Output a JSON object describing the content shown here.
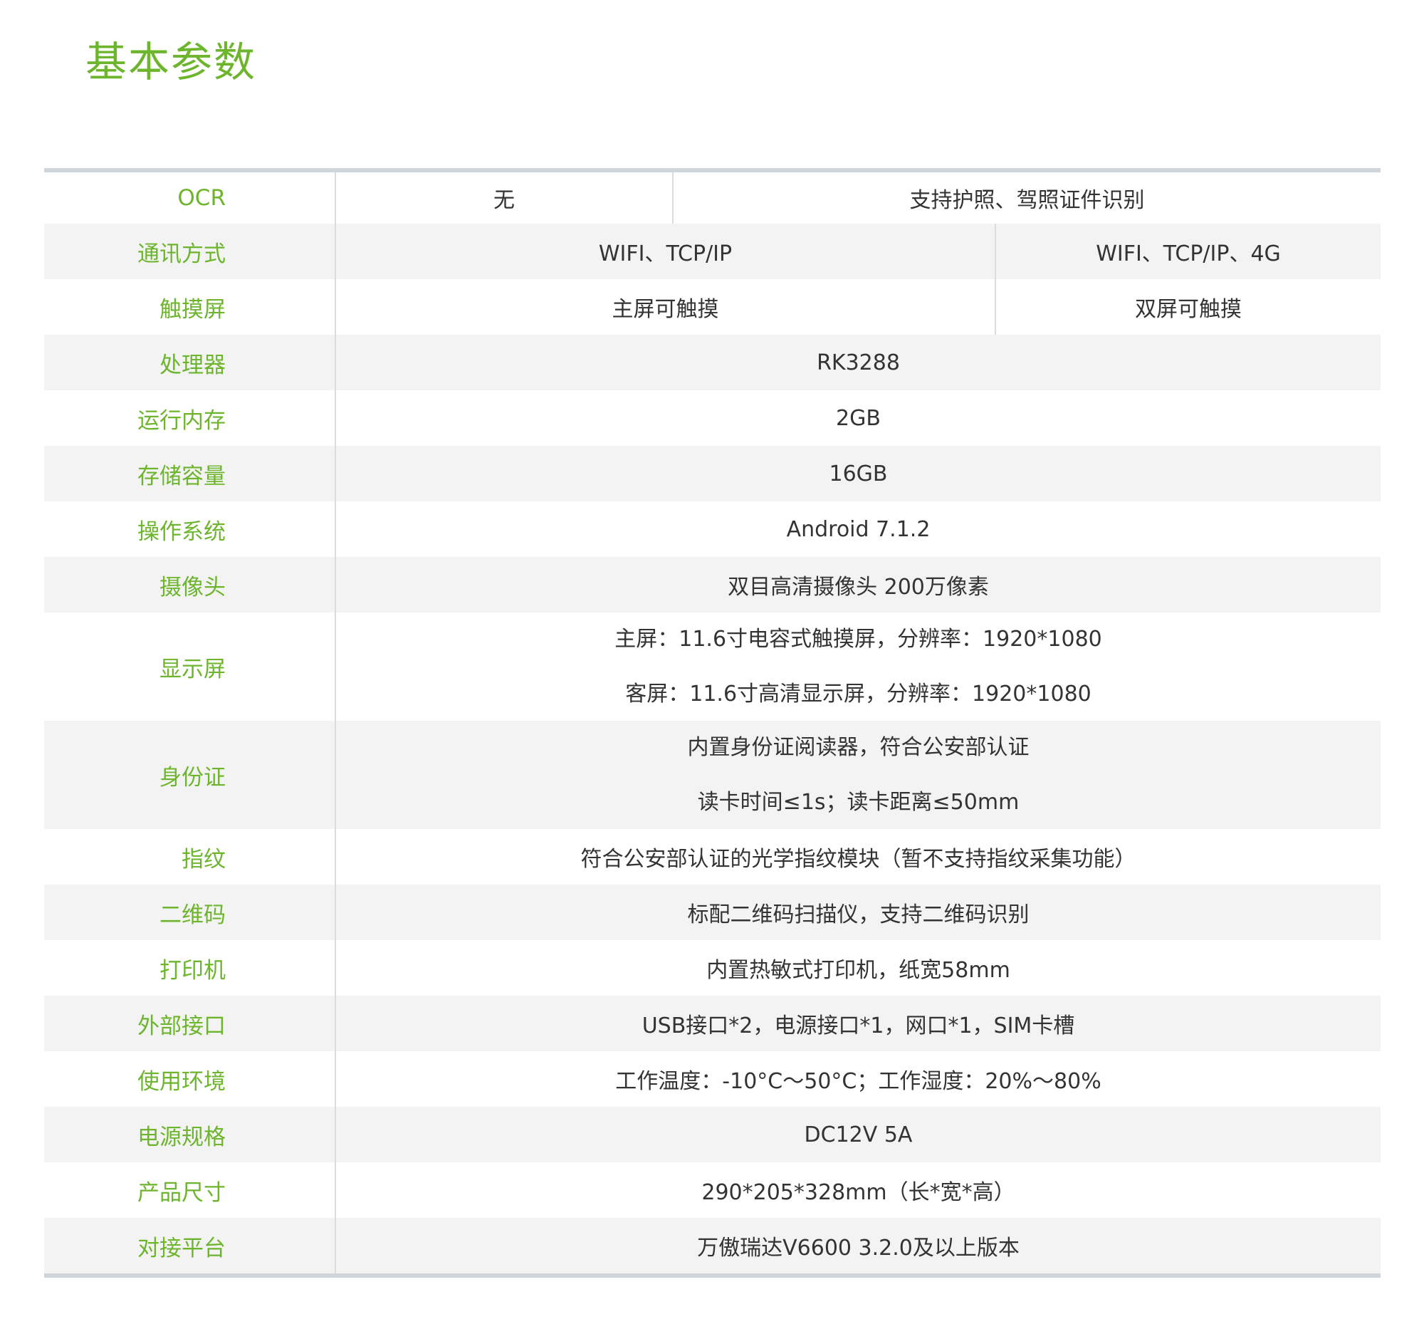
{
  "title": "基本参数",
  "colors": {
    "accent": "#6cb52c",
    "row_alt": "#f3f3f3",
    "border": "#cfd5da"
  },
  "rows": [
    {
      "label": "OCR",
      "values": [
        "无",
        "支持护照、驾照证件识别"
      ]
    },
    {
      "label": "通讯方式",
      "values": [
        "WIFI、TCP/IP",
        "WIFI、TCP/IP、4G"
      ]
    },
    {
      "label": "触摸屏",
      "values": [
        "主屏可触摸",
        "双屏可触摸"
      ]
    },
    {
      "label": "处理器",
      "values": [
        "RK3288"
      ]
    },
    {
      "label": "运行内存",
      "values": [
        "2GB"
      ]
    },
    {
      "label": "存储容量",
      "values": [
        "16GB"
      ]
    },
    {
      "label": "操作系统",
      "values": [
        "Android 7.1.2"
      ]
    },
    {
      "label": "摄像头",
      "values": [
        "双目高清摄像头 200万像素"
      ]
    },
    {
      "label": "显示屏",
      "values": [
        "主屏：11.6寸电容式触摸屏，分辨率：1920*1080",
        "客屏：11.6寸高清显示屏，分辨率：1920*1080"
      ]
    },
    {
      "label": "身份证",
      "values": [
        "内置身份证阅读器，符合公安部认证",
        "读卡时间≤1s；读卡距离≤50mm"
      ]
    },
    {
      "label": "指纹",
      "values": [
        "符合公安部认证的光学指纹模块（暂不支持指纹采集功能）"
      ]
    },
    {
      "label": "二维码",
      "values": [
        "标配二维码扫描仪，支持二维码识别"
      ]
    },
    {
      "label": "打印机",
      "values": [
        "内置热敏式打印机，纸宽58mm"
      ]
    },
    {
      "label": "外部接口",
      "values": [
        "USB接口*2，电源接口*1，网口*1，SIM卡槽"
      ]
    },
    {
      "label": "使用环境",
      "values": [
        "工作温度：-10°C～50°C；工作湿度：20%～80%"
      ]
    },
    {
      "label": "电源规格",
      "values": [
        "DC12V 5A"
      ]
    },
    {
      "label": "产品尺寸",
      "values": [
        "290*205*328mm（长*宽*高）"
      ]
    },
    {
      "label": "对接平台",
      "values": [
        "万傲瑞达V6600 3.2.0及以上版本"
      ]
    }
  ]
}
